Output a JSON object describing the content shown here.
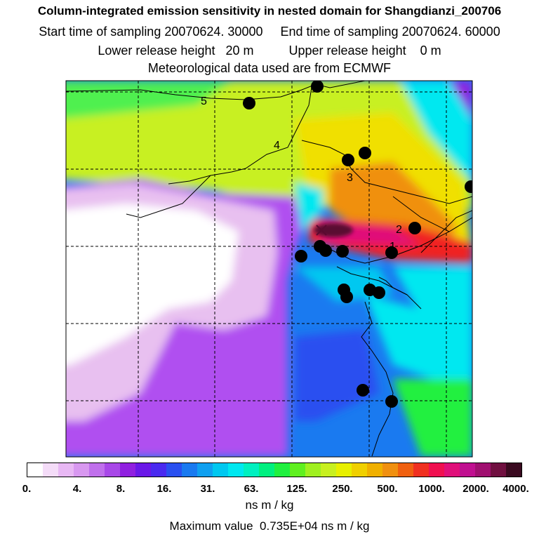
{
  "header": {
    "title": "Column-integrated emission sensitivity in nested domain for Shangdianzi_200706",
    "sampling": "Start time of sampling 20070624. 30000     End time of sampling 20070624. 60000",
    "release": "Lower release height   20 m          Upper release height    0 m",
    "met": "Meteorological data used are from ECMWF"
  },
  "map": {
    "markers": [
      "1",
      "2",
      "3",
      "4",
      "5"
    ],
    "colors": {
      "white": "#ffffff",
      "lavender": "#e8c0f0",
      "violet": "#b050f0",
      "purple": "#9020e0",
      "blue": "#2a6af0",
      "cyan": "#00e8f0",
      "green": "#50f050",
      "yellowgreen": "#c0f020",
      "yellow": "#f0e000",
      "orange": "#f09010",
      "red": "#f02020",
      "magenta": "#e0107a",
      "darkmagenta": "#5a0a30"
    }
  },
  "legend": {
    "ticks": [
      "0.",
      "4.",
      "8.",
      "16.",
      "31.",
      "63.",
      "125.",
      "250.",
      "500.",
      "1000.",
      "2000.",
      "4000."
    ],
    "colors": [
      "#ffffff",
      "#f4dcf8",
      "#e8b8f4",
      "#d898f0",
      "#c070ec",
      "#a848e8",
      "#9020e0",
      "#6a18e8",
      "#4a2af0",
      "#2a50f0",
      "#1a7af0",
      "#10a0f0",
      "#00c8f0",
      "#00e8f0",
      "#00f0c0",
      "#00f080",
      "#20f040",
      "#60f020",
      "#a0f020",
      "#c8f020",
      "#e8f000",
      "#f0d000",
      "#f0b000",
      "#f09010",
      "#f06010",
      "#f03020",
      "#f01050",
      "#e0107a",
      "#c01090",
      "#a01070",
      "#701040",
      "#3a0a20"
    ],
    "unit": "ns m / kg",
    "max_value": "Maximum value  0.735E+04 ns m / kg"
  }
}
